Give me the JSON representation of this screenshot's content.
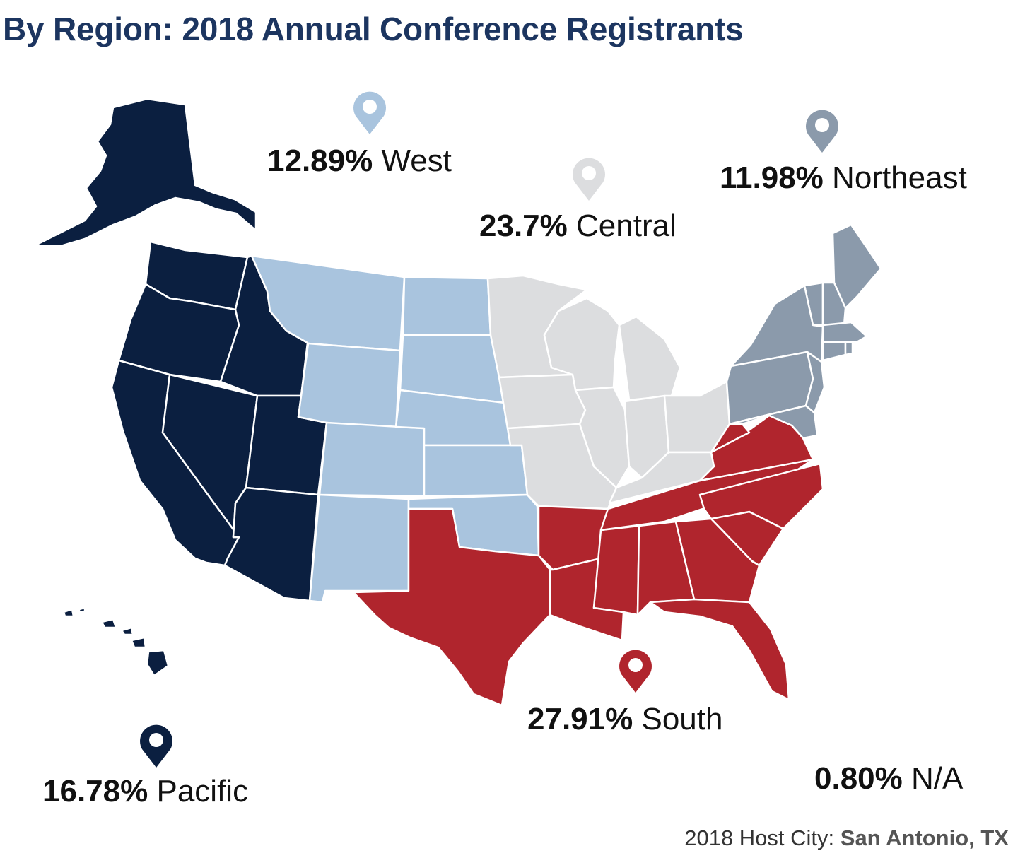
{
  "title": "By Region: 2018 Annual Conference Registrants",
  "colors": {
    "title": "#1c3560",
    "pacific": "#0b1f40",
    "west": "#a9c4de",
    "central": "#dcdddf",
    "northeast": "#8b9aab",
    "south": "#b0252d"
  },
  "regions": {
    "west": {
      "percent": "12.89%",
      "name": "West",
      "icon": "map-pin-icon"
    },
    "central": {
      "percent": "23.7%",
      "name": "Central",
      "icon": "map-pin-icon"
    },
    "northeast": {
      "percent": "11.98%",
      "name": "Northeast",
      "icon": "map-pin-icon"
    },
    "south": {
      "percent": "27.91%",
      "name": "South",
      "icon": "map-pin-icon"
    },
    "pacific": {
      "percent": "16.78%",
      "name": "Pacific",
      "icon": "map-pin-icon"
    },
    "na": {
      "percent": "0.80%",
      "name": "N/A"
    }
  },
  "host": {
    "label": "2018 Host City: ",
    "city": "San Antonio, TX"
  }
}
